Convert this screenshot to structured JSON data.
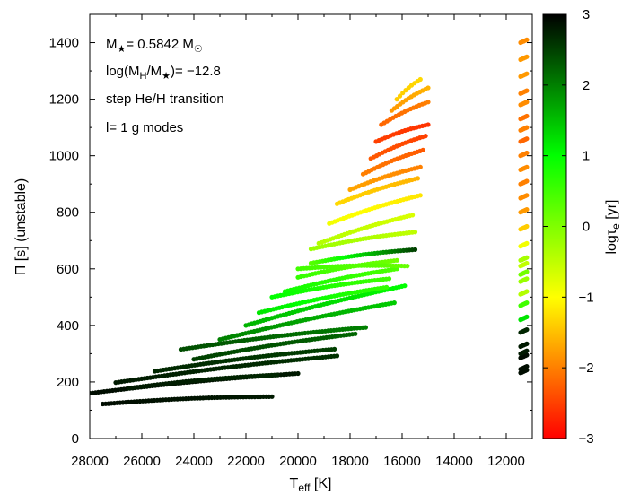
{
  "chart_data": {
    "type": "scatter",
    "xlabel_main": "T",
    "xlabel_sub": "eff",
    "xlabel_unit": " [K]",
    "ylabel": "Π [s] (unstable)",
    "colorbar_label_main": "logτ",
    "colorbar_label_sub": "e",
    "colorbar_label_unit": " [yr]",
    "xlim": [
      28000,
      11000
    ],
    "ylim": [
      0,
      1500
    ],
    "clim": [
      -3,
      3
    ],
    "x_ticks": [
      28000,
      26000,
      24000,
      22000,
      20000,
      18000,
      16000,
      14000,
      12000
    ],
    "x_tick_labels": [
      "28000",
      "26000",
      "24000",
      "22000",
      "20000",
      "18000",
      "16000",
      "14000",
      "12000"
    ],
    "y_ticks": [
      0,
      200,
      400,
      600,
      800,
      1000,
      1200,
      1400
    ],
    "y_tick_labels": [
      "0",
      "200",
      "400",
      "600",
      "800",
      "1000",
      "1200",
      "1400"
    ],
    "c_ticks": [
      3,
      2,
      1,
      0,
      -1,
      -2,
      -3
    ],
    "c_tick_labels": [
      "3",
      "2",
      "1",
      "0",
      "−1",
      "−2",
      "−3"
    ],
    "colormap": [
      "#ff0000",
      "#ffff00",
      "#00ff00",
      "#000000"
    ],
    "annotations": {
      "mass": [
        "M",
        "★",
        "= 0.5842 M",
        "☉"
      ],
      "hydrogen": [
        "log(M",
        "H",
        "/M",
        "★",
        ")= −12.8"
      ],
      "transition": "step He/H transition",
      "modes": "l= 1 g modes"
    },
    "series": [
      {
        "x0": 28000,
        "y0": 160,
        "x1": 20000,
        "y1": 230,
        "c0": 2.9,
        "c1": 2.8
      },
      {
        "x0": 27500,
        "y0": 122,
        "x1": 21000,
        "y1": 148,
        "c0": 2.9,
        "c1": 2.8
      },
      {
        "x0": 27000,
        "y0": 198,
        "x1": 18500,
        "y1": 292,
        "c0": 2.8,
        "c1": 2.6
      },
      {
        "x0": 26500,
        "y0": 178,
        "x1": 20800,
        "y1": 225,
        "c0": 2.8,
        "c1": 2.7
      },
      {
        "x0": 25500,
        "y0": 238,
        "x1": 18600,
        "y1": 316,
        "c0": 2.7,
        "c1": 2.5
      },
      {
        "x0": 24000,
        "y0": 280,
        "x1": 17800,
        "y1": 370,
        "c0": 2.5,
        "c1": 2.2
      },
      {
        "x0": 24500,
        "y0": 315,
        "x1": 17400,
        "y1": 393,
        "c0": 2.4,
        "c1": 2.0
      },
      {
        "x0": 23000,
        "y0": 350,
        "x1": 16300,
        "y1": 480,
        "c0": 2.0,
        "c1": 1.4
      },
      {
        "x0": 22000,
        "y0": 400,
        "x1": 15900,
        "y1": 540,
        "c0": 1.6,
        "c1": 1.0
      },
      {
        "x0": 21500,
        "y0": 445,
        "x1": 16600,
        "y1": 535,
        "c0": 1.2,
        "c1": 0.6
      },
      {
        "x0": 20500,
        "y0": 520,
        "x1": 16200,
        "y1": 600,
        "c0": 0.9,
        "c1": 0.4
      },
      {
        "x0": 21000,
        "y0": 500,
        "x1": 16500,
        "y1": 565,
        "c0": 1.0,
        "c1": 0.5
      },
      {
        "x0": 20000,
        "y0": 570,
        "x1": 16200,
        "y1": 630,
        "c0": 0.6,
        "c1": 0.1
      },
      {
        "x0": 19500,
        "y0": 620,
        "x1": 15500,
        "y1": 668,
        "c0": 0.3,
        "c1": 2.5
      },
      {
        "x0": 20000,
        "y0": 600,
        "x1": 15800,
        "y1": 610,
        "c0": 0.5,
        "c1": 0.2
      },
      {
        "x0": 19500,
        "y0": 670,
        "x1": 15500,
        "y1": 730,
        "c0": -0.2,
        "c1": -0.5
      },
      {
        "x0": 19200,
        "y0": 690,
        "x1": 15600,
        "y1": 790,
        "c0": -0.4,
        "c1": -0.7
      },
      {
        "x0": 18800,
        "y0": 760,
        "x1": 15300,
        "y1": 860,
        "c0": -0.9,
        "c1": -1.2
      },
      {
        "x0": 18500,
        "y0": 830,
        "x1": 15400,
        "y1": 920,
        "c0": -1.3,
        "c1": -1.6
      },
      {
        "x0": 18000,
        "y0": 880,
        "x1": 15300,
        "y1": 960,
        "c0": -1.7,
        "c1": -2.0
      },
      {
        "x0": 17500,
        "y0": 935,
        "x1": 15200,
        "y1": 1020,
        "c0": -2.0,
        "c1": -2.3
      },
      {
        "x0": 17200,
        "y0": 990,
        "x1": 15100,
        "y1": 1070,
        "c0": -2.3,
        "c1": -2.5
      },
      {
        "x0": 17000,
        "y0": 1050,
        "x1": 15000,
        "y1": 1110,
        "c0": -2.5,
        "c1": -2.6
      },
      {
        "x0": 16800,
        "y0": 1110,
        "x1": 15000,
        "y1": 1190,
        "c0": -2.2,
        "c1": -2.0
      },
      {
        "x0": 16400,
        "y0": 1160,
        "x1": 15000,
        "y1": 1240,
        "c0": -1.8,
        "c1": -1.6
      },
      {
        "x0": 16200,
        "y0": 1200,
        "x1": 15300,
        "y1": 1270,
        "c0": -1.4,
        "c1": -1.3
      }
    ],
    "right_clusters": [
      {
        "y": 232,
        "c": 2.9
      },
      {
        "y": 245,
        "c": 2.9
      },
      {
        "y": 285,
        "c": 2.9
      },
      {
        "y": 300,
        "c": 2.8
      },
      {
        "y": 325,
        "c": 2.8
      },
      {
        "y": 375,
        "c": 2.7
      },
      {
        "y": 420,
        "c": 1.2
      },
      {
        "y": 470,
        "c": 0.5
      },
      {
        "y": 510,
        "c": -0.4
      },
      {
        "y": 555,
        "c": -0.2
      },
      {
        "y": 580,
        "c": 0.1
      },
      {
        "y": 610,
        "c": -0.5
      },
      {
        "y": 630,
        "c": -0.3
      },
      {
        "y": 680,
        "c": -0.9
      },
      {
        "y": 740,
        "c": -1.4
      },
      {
        "y": 800,
        "c": -1.8
      },
      {
        "y": 850,
        "c": -1.9
      },
      {
        "y": 900,
        "c": -2.0
      },
      {
        "y": 950,
        "c": -1.9
      },
      {
        "y": 1000,
        "c": -2.0
      },
      {
        "y": 1050,
        "c": -2.2
      },
      {
        "y": 1090,
        "c": -2.0
      },
      {
        "y": 1130,
        "c": -2.1
      },
      {
        "y": 1180,
        "c": -1.9
      },
      {
        "y": 1220,
        "c": -2.0
      },
      {
        "y": 1280,
        "c": -1.8
      },
      {
        "y": 1340,
        "c": -1.8
      },
      {
        "y": 1400,
        "c": -1.9
      }
    ]
  }
}
